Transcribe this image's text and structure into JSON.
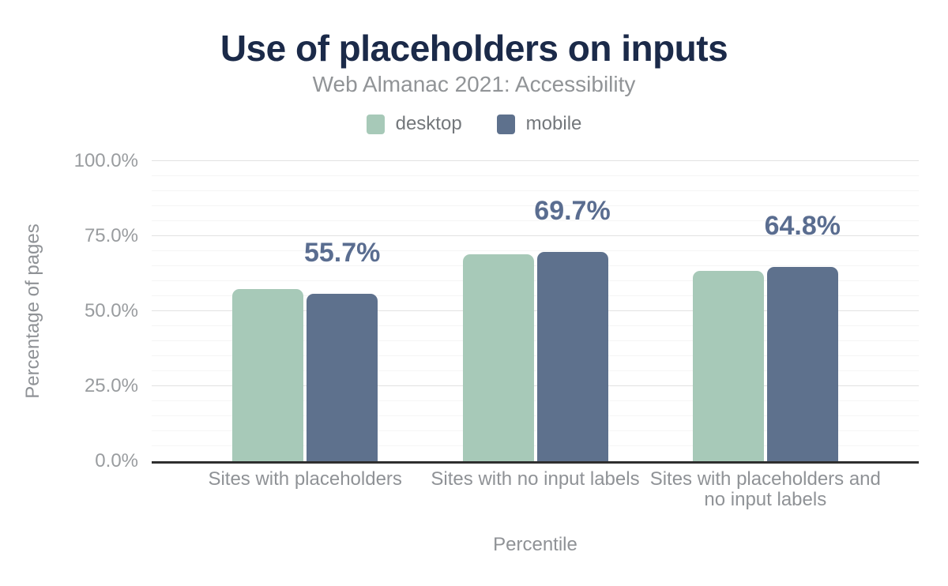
{
  "header": {
    "title": "Use of placeholders on inputs",
    "subtitle": "Web Almanac 2021: Accessibility"
  },
  "chart_data": {
    "type": "bar",
    "title": "Use of placeholders on inputs",
    "subtitle": "Web Almanac 2021: Accessibility",
    "categories": [
      "Sites with placeholders",
      "Sites with no input labels",
      "Sites with placeholders and no input labels"
    ],
    "series": [
      {
        "name": "desktop",
        "color": "#a7c9b8",
        "values": [
          57.4,
          68.9,
          63.3
        ]
      },
      {
        "name": "mobile",
        "color": "#5e718d",
        "values": [
          55.7,
          69.7,
          64.8
        ]
      }
    ],
    "data_labels": {
      "labeled_series": "mobile",
      "values": [
        "55.7%",
        "69.7%",
        "64.8%"
      ],
      "color": "#5a6d90"
    },
    "xlabel": "Percentile",
    "ylabel": "Percentage of pages",
    "ylim": [
      0,
      100
    ],
    "yticks": [
      {
        "pct": 0,
        "label": "0.0%"
      },
      {
        "pct": 25,
        "label": "25.0%"
      },
      {
        "pct": 50,
        "label": "50.0%"
      },
      {
        "pct": 75,
        "label": "75.0%"
      },
      {
        "pct": 100,
        "label": "100.0%"
      }
    ],
    "grid": {
      "minor_step": 5,
      "major_step": 25,
      "major_color": "#e2e2e2",
      "minor_color": "#f5f5f5"
    },
    "legend_position": "top",
    "colors": {
      "title": "#1b2a49",
      "subtitle": "#919497",
      "axis_text": "#8f9296",
      "axis_line": "#2f2f2f",
      "background": "#ffffff"
    }
  }
}
